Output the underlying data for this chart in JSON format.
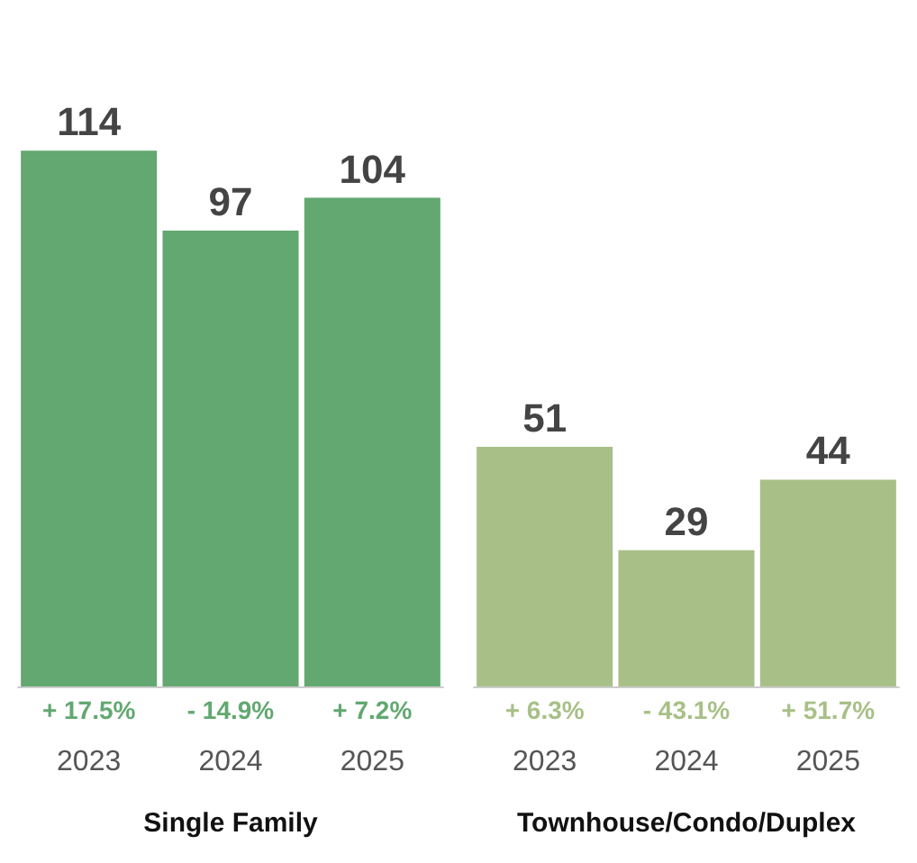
{
  "chart_data": [
    {
      "type": "bar",
      "xlabel": "Single Family",
      "categories": [
        "2023",
        "2024",
        "2025"
      ],
      "values": [
        114,
        97,
        104
      ],
      "color": "#62a870",
      "data_labels": true,
      "tick_labels": "x",
      "annotations": [
        "+ 17.5%",
        "- 14.9%",
        "+ 7.2%"
      ]
    },
    {
      "type": "bar",
      "xlabel": "Townhouse/Condo/Duplex",
      "categories": [
        "2023",
        "2024",
        "2025"
      ],
      "values": [
        51,
        29,
        44
      ],
      "color": "#a8c088",
      "data_labels": true,
      "tick_labels": "x",
      "annotations": [
        "+ 6.3%",
        "- 43.1%",
        "+ 51.7%"
      ]
    }
  ]
}
